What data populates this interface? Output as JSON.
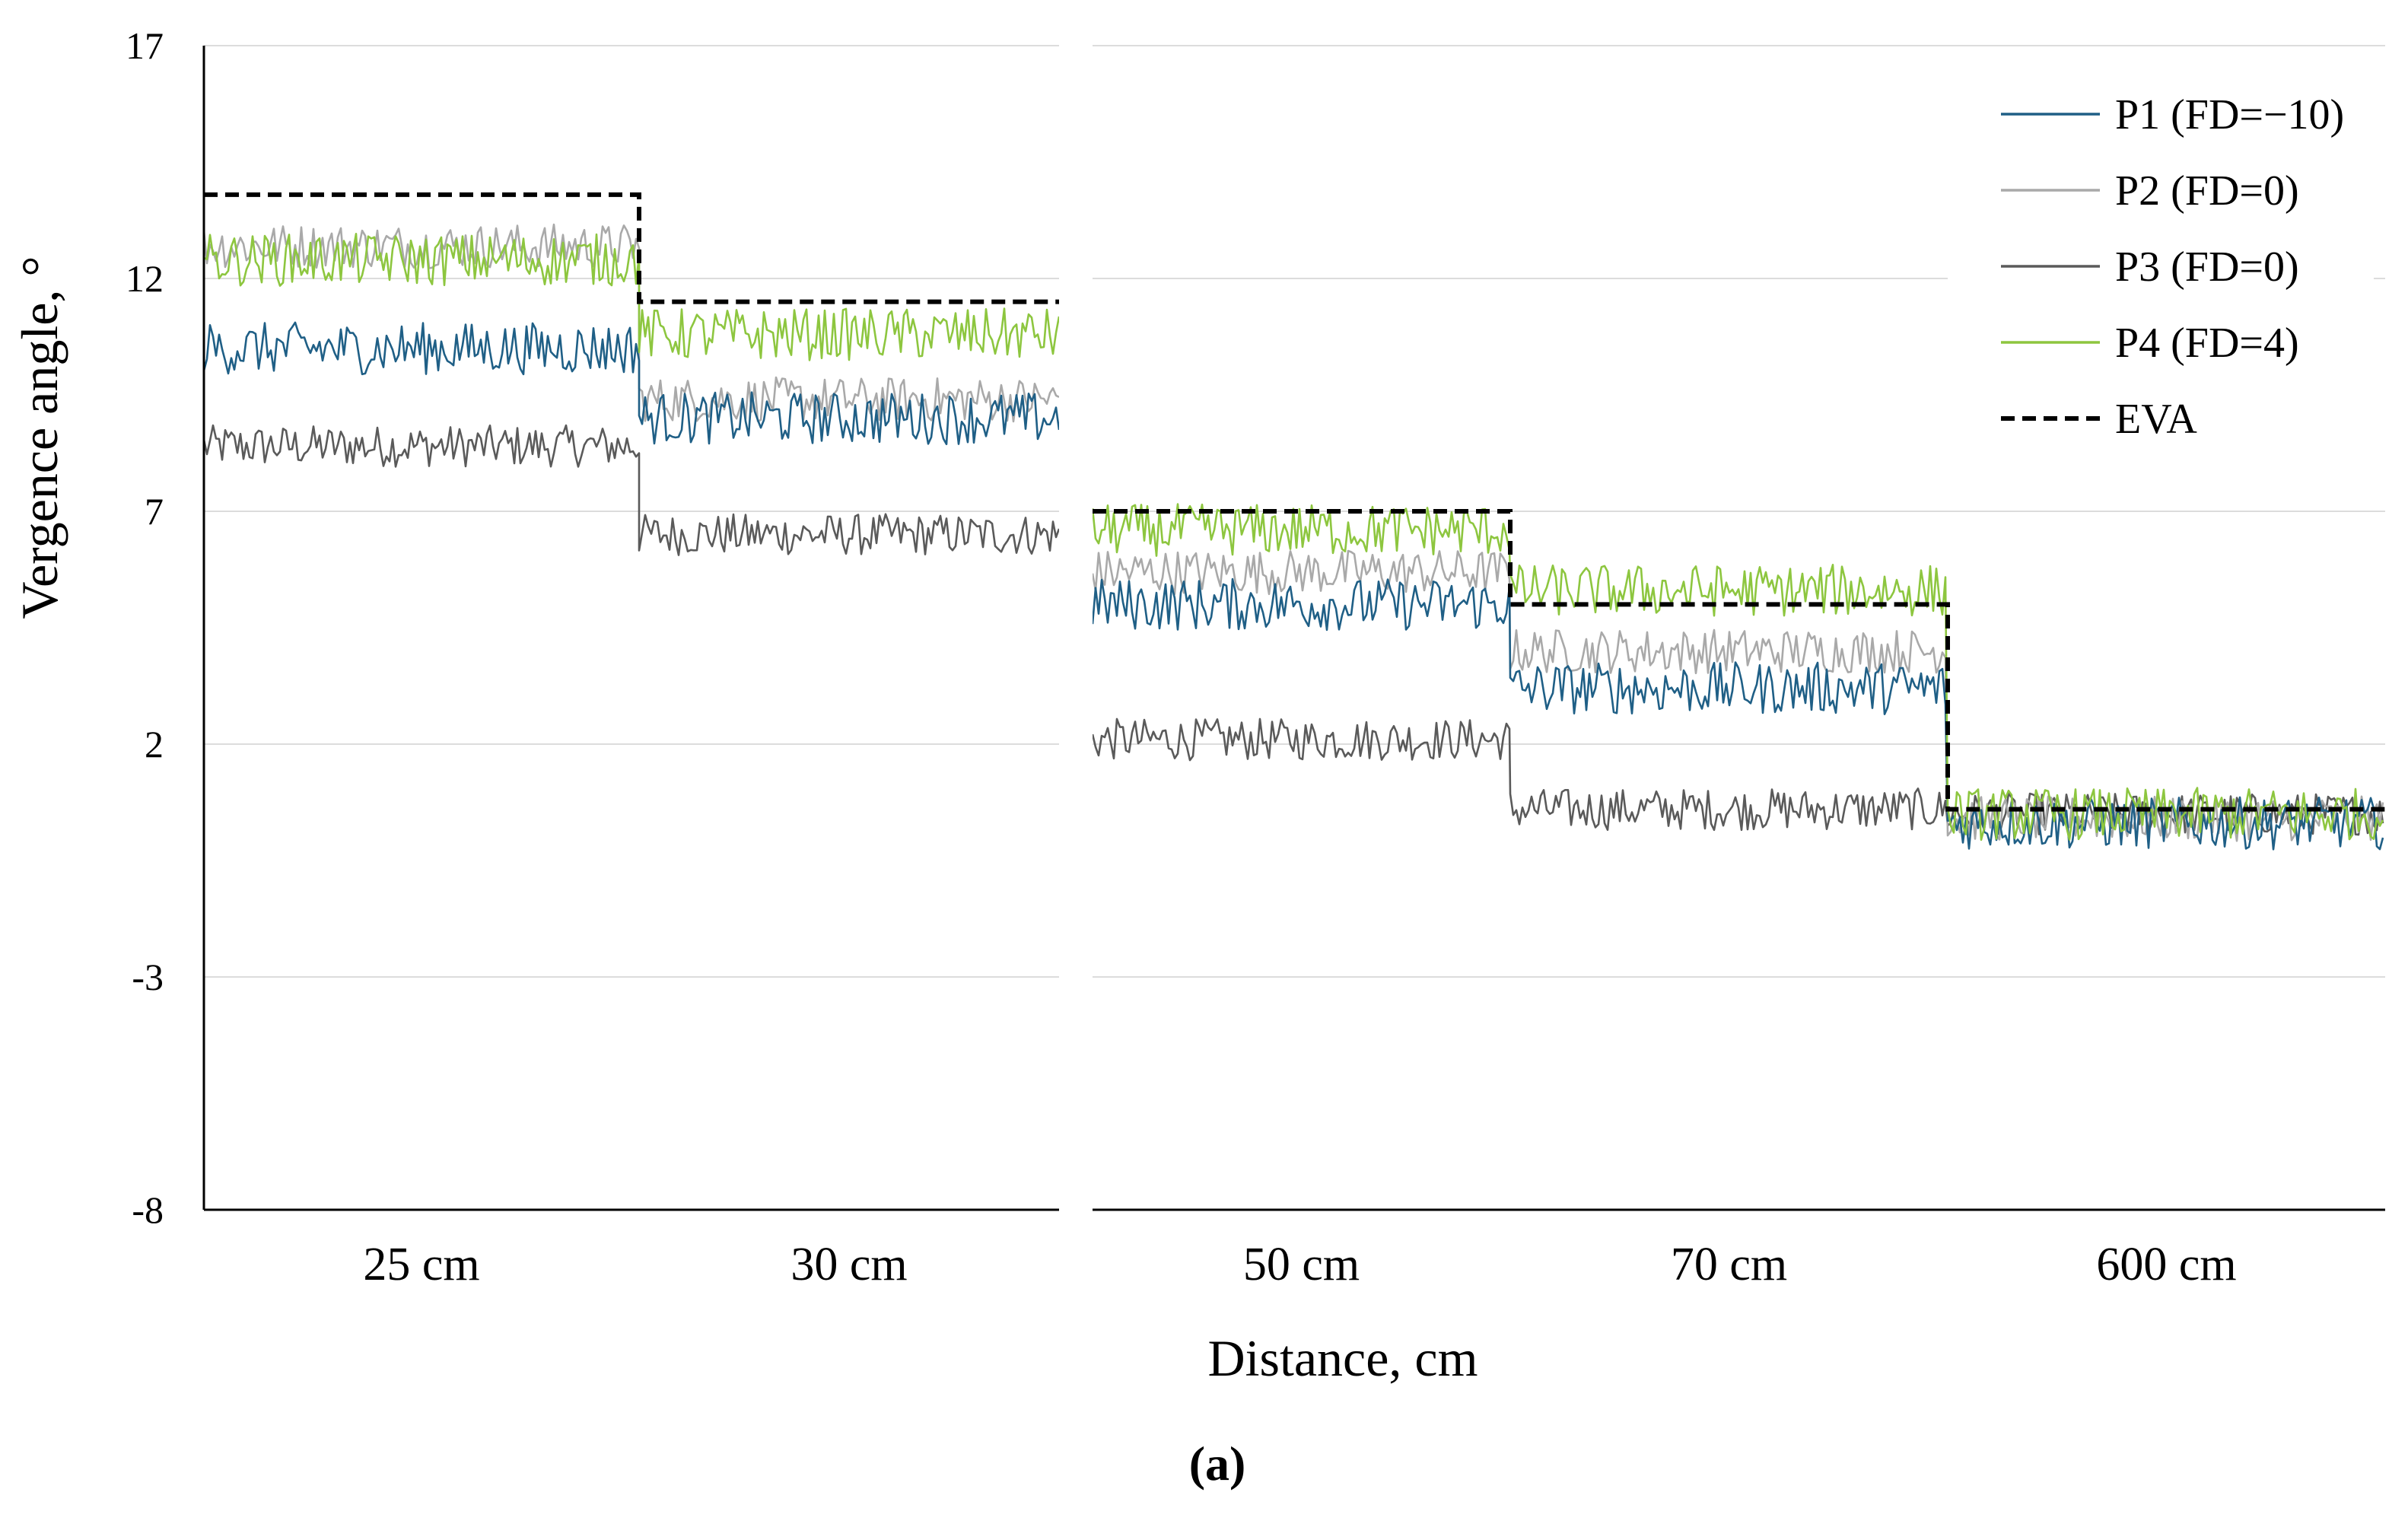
{
  "chart_data": {
    "type": "line",
    "title": "",
    "caption": "(a)",
    "xlabel": "Distance, cm",
    "ylabel": "Vergence angle, °",
    "ylim": [
      -8,
      17
    ],
    "yticks": [
      "17",
      "12",
      "7",
      "2",
      "-3",
      "-8"
    ],
    "ytick_values": [
      17,
      12,
      7,
      2,
      -3,
      -8
    ],
    "grid": true,
    "legend_position": "top-right",
    "panels": [
      {
        "name": "near",
        "categories": [
          "25 cm",
          "30 cm"
        ],
        "segment_span": [
          0,
          2
        ]
      },
      {
        "name": "far",
        "categories": [
          "50 cm",
          "70 cm",
          "600 cm"
        ],
        "segment_span": [
          2,
          5
        ]
      }
    ],
    "categories": [
      "25 cm",
      "30 cm",
      "50 cm",
      "70 cm",
      "600 cm"
    ],
    "series": [
      {
        "name": "P1 (FD=−10)",
        "color": "#1f5f86",
        "style": "solid",
        "values": [
          10.5,
          9.0,
          5.0,
          3.2,
          0.3
        ],
        "noise": 0.35
      },
      {
        "name": "P2 (FD=0)",
        "color": "#a9a9a9",
        "style": "solid",
        "values": [
          12.7,
          9.4,
          5.7,
          4.0,
          0.4
        ],
        "noise": 0.3
      },
      {
        "name": "P3 (FD=0)",
        "color": "#5a5a5a",
        "style": "solid",
        "values": [
          8.4,
          6.5,
          2.1,
          0.6,
          0.5
        ],
        "noise": 0.28
      },
      {
        "name": "P4 (FD=4)",
        "color": "#8dc63f",
        "style": "solid",
        "values": [
          12.4,
          10.8,
          6.6,
          5.3,
          0.5
        ],
        "noise": 0.35
      },
      {
        "name": "EVA",
        "color": "#000000",
        "style": "dashed",
        "values": [
          13.8,
          11.5,
          7.0,
          5.0,
          0.6
        ],
        "noise": 0
      }
    ]
  }
}
